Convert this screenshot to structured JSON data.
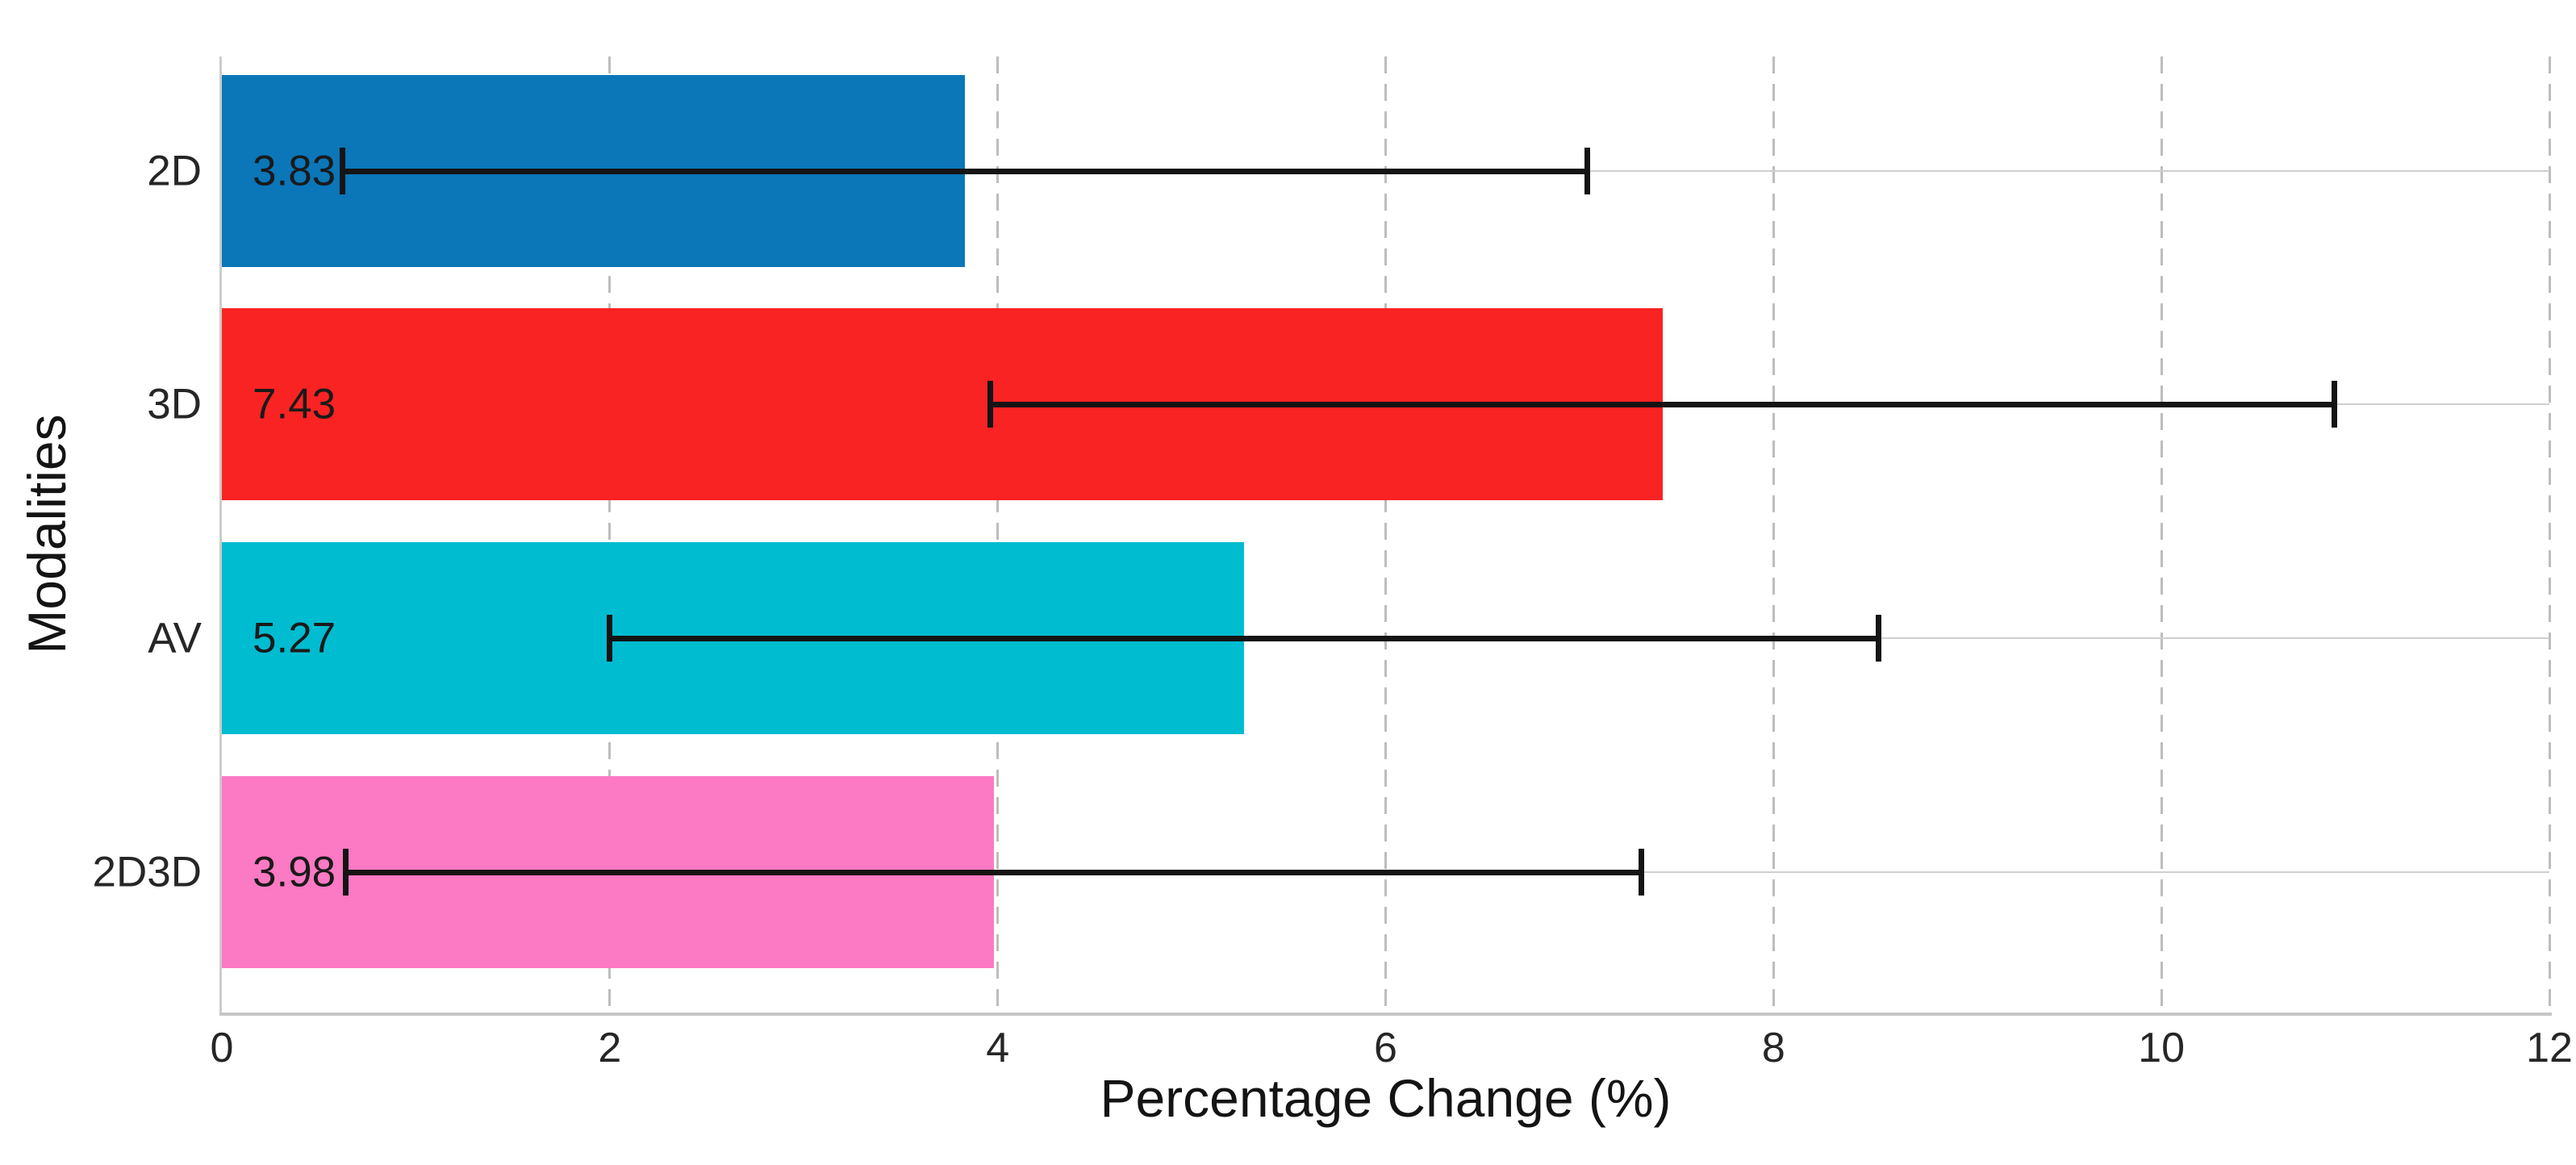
{
  "chart_data": {
    "type": "bar",
    "orientation": "horizontal",
    "xlabel": "Percentage Change (%)",
    "ylabel": "Modalities",
    "categories": [
      "2D",
      "3D",
      "AV",
      "2D3D"
    ],
    "values": [
      3.83,
      7.43,
      5.27,
      3.98
    ],
    "value_labels": [
      "3.83",
      "7.43",
      "5.27",
      "3.98"
    ],
    "error_low": [
      0.62,
      3.96,
      2.0,
      0.64
    ],
    "error_high": [
      7.04,
      10.89,
      8.54,
      7.32
    ],
    "bar_colors": [
      "#0b76b8",
      "#f92323",
      "#00bcd0",
      "#fc79c3"
    ],
    "x_ticks": [
      0,
      2,
      4,
      6,
      8,
      10,
      12
    ],
    "x_tick_labels": [
      "0",
      "2",
      "4",
      "6",
      "8",
      "10",
      "12"
    ],
    "xlim": [
      0,
      12
    ],
    "grid": {
      "vertical": "dashed",
      "horizontal": "solid-at-bar-centers"
    },
    "error_bar_color": "#141414",
    "legend": "none",
    "title": ""
  }
}
